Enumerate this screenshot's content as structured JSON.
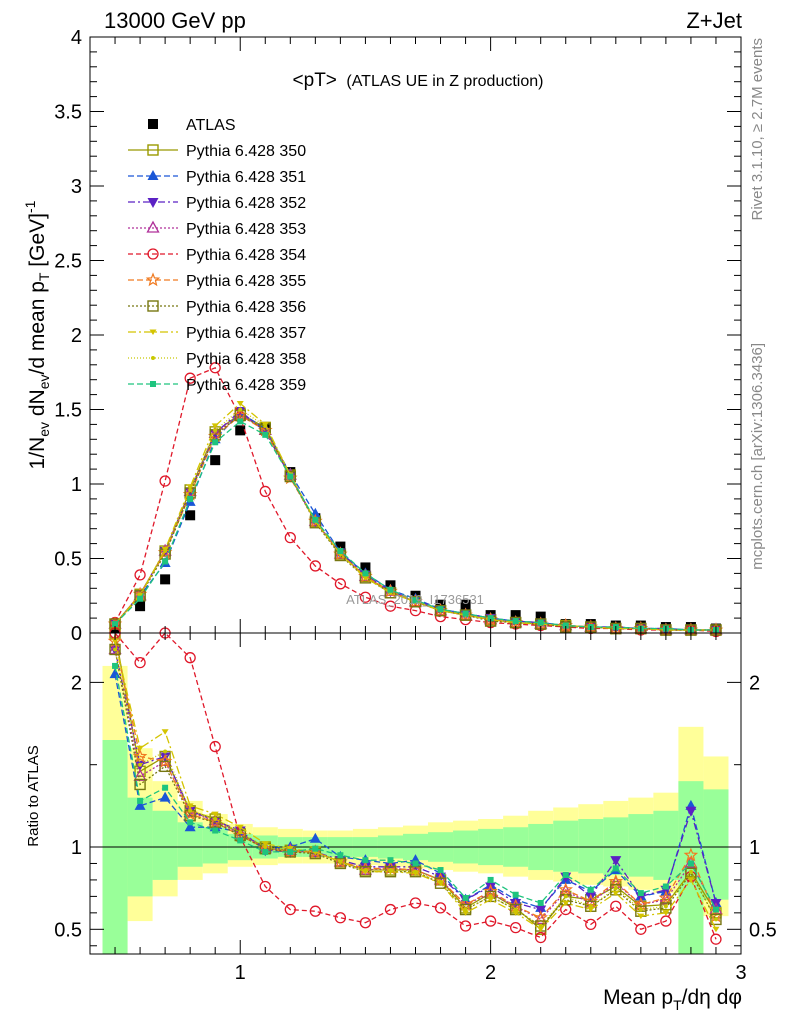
{
  "header": {
    "left": "13000 GeV pp",
    "right": "Z+Jet"
  },
  "main_title": {
    "main": "<pT>",
    "sub": "(ATLAS UE in Z production)"
  },
  "side_labels": {
    "rivet": "Rivet 3.1.10, ≥ 2.7M events",
    "mcplots": "mcplots.cern.ch [arXiv:1306.3436]"
  },
  "watermark": "ATLAS_2019_I1736531",
  "colors": {
    "ATLAS": "#000000",
    "350": "#999900",
    "351": "#1a56d6",
    "352": "#5b21c4",
    "353": "#b0309a",
    "354": "#e0182a",
    "355": "#f07a20",
    "356": "#777711",
    "357": "#d4c400",
    "358": "#c8c800",
    "359": "#1ec47e",
    "band_inner": "#99ff99",
    "band_outer": "#ffff99"
  },
  "chart_data": [
    {
      "type": "line",
      "panel": "main",
      "ylabel": "1/N_ev dN_ev/d mean p_T [GeV]^-1",
      "ylim": [
        0,
        4
      ],
      "xlim": [
        0.4,
        3.0
      ],
      "yticks": [
        "0",
        "0.5",
        "1",
        "1.5",
        "2",
        "2.5",
        "3",
        "3.5",
        "4"
      ],
      "x": [
        0.5,
        0.6,
        0.7,
        0.8,
        0.9,
        1.0,
        1.1,
        1.2,
        1.3,
        1.4,
        1.5,
        1.6,
        1.7,
        1.8,
        1.9,
        2.0,
        2.1,
        2.2,
        2.3,
        2.4,
        2.5,
        2.6,
        2.7,
        2.8,
        2.9
      ],
      "series": [
        {
          "name": "ATLAS",
          "key": "ATLAS",
          "marker": "square-filled",
          "values": [
            0.03,
            0.18,
            0.36,
            0.79,
            1.16,
            1.36,
            1.38,
            1.08,
            0.77,
            0.58,
            0.44,
            0.32,
            0.25,
            0.19,
            0.19,
            0.12,
            0.12,
            0.11,
            0.06,
            0.06,
            0.05,
            0.05,
            0.04,
            0.04,
            0.03
          ]
        },
        {
          "name": "Pythia 6.428 350",
          "key": "350",
          "marker": "square-open",
          "dash": "",
          "values": [
            0.06,
            0.26,
            0.55,
            0.96,
            1.35,
            1.47,
            1.38,
            1.06,
            0.75,
            0.53,
            0.38,
            0.27,
            0.21,
            0.15,
            0.12,
            0.09,
            0.07,
            0.06,
            0.05,
            0.04,
            0.03,
            0.03,
            0.02,
            0.02,
            0.02
          ]
        },
        {
          "name": "Pythia 6.428 351",
          "key": "351",
          "marker": "triangle-up-filled",
          "dash": "6,3",
          "values": [
            0.06,
            0.25,
            0.47,
            0.88,
            1.3,
            1.48,
            1.37,
            1.07,
            0.8,
            0.54,
            0.4,
            0.29,
            0.23,
            0.16,
            0.13,
            0.1,
            0.08,
            0.07,
            0.05,
            0.04,
            0.04,
            0.03,
            0.03,
            0.02,
            0.02
          ]
        },
        {
          "name": "Pythia 6.428 352",
          "key": "352",
          "marker": "triangle-down-filled",
          "dash": "7,3,2,3",
          "values": [
            0.06,
            0.26,
            0.55,
            0.95,
            1.34,
            1.49,
            1.35,
            1.05,
            0.75,
            0.54,
            0.39,
            0.28,
            0.22,
            0.16,
            0.13,
            0.1,
            0.08,
            0.07,
            0.05,
            0.04,
            0.04,
            0.03,
            0.03,
            0.02,
            0.02
          ]
        },
        {
          "name": "Pythia 6.428 353",
          "key": "353",
          "marker": "triangle-up-open",
          "dash": "2,2",
          "values": [
            0.06,
            0.25,
            0.55,
            0.95,
            1.34,
            1.47,
            1.36,
            1.06,
            0.75,
            0.53,
            0.38,
            0.28,
            0.21,
            0.15,
            0.12,
            0.09,
            0.07,
            0.06,
            0.05,
            0.04,
            0.03,
            0.03,
            0.02,
            0.02,
            0.02
          ]
        },
        {
          "name": "Pythia 6.428 354",
          "key": "354",
          "marker": "circle-open",
          "dash": "5,3",
          "values": [
            0.07,
            0.39,
            1.02,
            1.71,
            1.78,
            1.45,
            0.95,
            0.64,
            0.45,
            0.33,
            0.24,
            0.18,
            0.15,
            0.11,
            0.09,
            0.07,
            0.06,
            0.05,
            0.04,
            0.03,
            0.03,
            0.02,
            0.02,
            0.02,
            0.01
          ]
        },
        {
          "name": "Pythia 6.428 355",
          "key": "355",
          "marker": "star-open",
          "dash": "6,3",
          "values": [
            0.06,
            0.26,
            0.54,
            0.93,
            1.32,
            1.46,
            1.36,
            1.04,
            0.75,
            0.53,
            0.38,
            0.28,
            0.21,
            0.15,
            0.12,
            0.09,
            0.07,
            0.06,
            0.05,
            0.04,
            0.03,
            0.03,
            0.02,
            0.02,
            0.02
          ]
        },
        {
          "name": "Pythia 6.428 356",
          "key": "356",
          "marker": "square-open",
          "dash": "2,2",
          "values": [
            0.06,
            0.25,
            0.53,
            0.94,
            1.33,
            1.46,
            1.37,
            1.05,
            0.74,
            0.52,
            0.37,
            0.27,
            0.21,
            0.15,
            0.12,
            0.08,
            0.07,
            0.06,
            0.04,
            0.04,
            0.03,
            0.03,
            0.02,
            0.02,
            0.02
          ]
        },
        {
          "name": "Pythia 6.428 357",
          "key": "357",
          "marker": "tri-small",
          "dash": "8,3,2,3",
          "values": [
            0.06,
            0.25,
            0.56,
            0.98,
            1.39,
            1.54,
            1.4,
            1.06,
            0.75,
            0.53,
            0.37,
            0.27,
            0.21,
            0.15,
            0.12,
            0.09,
            0.07,
            0.06,
            0.05,
            0.04,
            0.03,
            0.03,
            0.02,
            0.02,
            0.02
          ]
        },
        {
          "name": "Pythia 6.428 358",
          "key": "358",
          "marker": "dot",
          "dash": "1,2",
          "values": [
            0.06,
            0.26,
            0.55,
            0.96,
            1.36,
            1.5,
            1.39,
            1.06,
            0.75,
            0.53,
            0.38,
            0.27,
            0.21,
            0.15,
            0.12,
            0.09,
            0.07,
            0.06,
            0.05,
            0.04,
            0.03,
            0.03,
            0.02,
            0.02,
            0.02
          ]
        },
        {
          "name": "Pythia 6.428 359",
          "key": "359",
          "marker": "square-small",
          "dash": "6,3",
          "values": [
            0.06,
            0.23,
            0.48,
            0.9,
            1.28,
            1.42,
            1.33,
            1.05,
            0.76,
            0.55,
            0.4,
            0.29,
            0.22,
            0.16,
            0.13,
            0.1,
            0.08,
            0.07,
            0.05,
            0.04,
            0.04,
            0.03,
            0.03,
            0.02,
            0.02
          ]
        }
      ]
    },
    {
      "type": "line",
      "panel": "ratio",
      "xlabel": "Mean p_T/dη dφ",
      "ylabel": "Ratio to ATLAS",
      "ylim": [
        0.35,
        2.3
      ],
      "xlim": [
        0.4,
        3.0
      ],
      "xticks": [
        "1",
        "2",
        "3"
      ],
      "yticks": [
        "0.5",
        "1",
        "2"
      ],
      "x": [
        0.5,
        0.6,
        0.7,
        0.8,
        0.9,
        1.0,
        1.1,
        1.2,
        1.3,
        1.4,
        1.5,
        1.6,
        1.7,
        1.8,
        1.9,
        2.0,
        2.1,
        2.2,
        2.3,
        2.4,
        2.5,
        2.6,
        2.7,
        2.8,
        2.9
      ],
      "band_inner": [
        [
          0.35,
          1.65
        ],
        [
          0.7,
          1.3
        ],
        [
          0.8,
          1.22
        ],
        [
          0.88,
          1.15
        ],
        [
          0.9,
          1.12
        ],
        [
          0.92,
          1.08
        ],
        [
          0.93,
          1.07
        ],
        [
          0.94,
          1.06
        ],
        [
          0.94,
          1.06
        ],
        [
          0.94,
          1.06
        ],
        [
          0.94,
          1.06
        ],
        [
          0.93,
          1.07
        ],
        [
          0.92,
          1.08
        ],
        [
          0.91,
          1.09
        ],
        [
          0.9,
          1.1
        ],
        [
          0.89,
          1.11
        ],
        [
          0.88,
          1.12
        ],
        [
          0.86,
          1.14
        ],
        [
          0.85,
          1.16
        ],
        [
          0.84,
          1.17
        ],
        [
          0.83,
          1.18
        ],
        [
          0.82,
          1.2
        ],
        [
          0.8,
          1.22
        ],
        [
          0.35,
          1.4
        ],
        [
          0.68,
          1.35
        ]
      ],
      "band_outer": [
        [
          0.35,
          2.1
        ],
        [
          0.55,
          1.6
        ],
        [
          0.7,
          1.4
        ],
        [
          0.8,
          1.28
        ],
        [
          0.84,
          1.2
        ],
        [
          0.88,
          1.14
        ],
        [
          0.89,
          1.12
        ],
        [
          0.9,
          1.11
        ],
        [
          0.9,
          1.1
        ],
        [
          0.9,
          1.1
        ],
        [
          0.89,
          1.11
        ],
        [
          0.88,
          1.12
        ],
        [
          0.87,
          1.13
        ],
        [
          0.86,
          1.15
        ],
        [
          0.85,
          1.16
        ],
        [
          0.84,
          1.17
        ],
        [
          0.82,
          1.19
        ],
        [
          0.8,
          1.22
        ],
        [
          0.79,
          1.24
        ],
        [
          0.77,
          1.26
        ],
        [
          0.76,
          1.28
        ],
        [
          0.74,
          1.3
        ],
        [
          0.72,
          1.33
        ],
        [
          0.35,
          1.73
        ],
        [
          0.58,
          1.55
        ]
      ],
      "series": [
        {
          "name": "Pythia 6.428 350",
          "key": "350",
          "marker": "square-open",
          "dash": "",
          "values": [
            2.3,
            1.46,
            1.55,
            1.22,
            1.17,
            1.08,
            1.0,
            0.98,
            0.97,
            0.91,
            0.86,
            0.86,
            0.86,
            0.8,
            0.63,
            0.72,
            0.63,
            0.5,
            0.7,
            0.68,
            0.76,
            0.64,
            0.65,
            0.85,
            0.6
          ]
        },
        {
          "name": "Pythia 6.428 351",
          "key": "351",
          "marker": "triangle-up-filled",
          "dash": "6,3",
          "values": [
            2.05,
            1.25,
            1.3,
            1.12,
            1.12,
            1.09,
            0.99,
            1.0,
            1.05,
            0.94,
            0.92,
            0.9,
            0.92,
            0.84,
            0.68,
            0.77,
            0.68,
            0.63,
            0.8,
            0.73,
            0.86,
            0.7,
            0.73,
            1.25,
            0.66
          ]
        },
        {
          "name": "Pythia 6.428 352",
          "key": "352",
          "marker": "triangle-down-filled",
          "dash": "7,3,2,3",
          "values": [
            2.2,
            1.5,
            1.55,
            1.22,
            1.16,
            1.1,
            0.98,
            0.97,
            0.97,
            0.92,
            0.88,
            0.88,
            0.88,
            0.82,
            0.68,
            0.76,
            0.66,
            0.62,
            0.82,
            0.7,
            0.92,
            0.7,
            0.74,
            1.22,
            0.66
          ]
        },
        {
          "name": "Pythia 6.428 353",
          "key": "353",
          "marker": "triangle-up-open",
          "dash": "2,2",
          "values": [
            2.2,
            1.43,
            1.52,
            1.21,
            1.16,
            1.08,
            0.99,
            0.98,
            0.97,
            0.91,
            0.86,
            0.87,
            0.86,
            0.8,
            0.65,
            0.72,
            0.64,
            0.56,
            0.73,
            0.66,
            0.78,
            0.65,
            0.68,
            0.9,
            0.62
          ]
        },
        {
          "name": "Pythia 6.428 354",
          "key": "354",
          "marker": "circle-open",
          "dash": "5,3",
          "values": [
            2.3,
            2.12,
            2.3,
            2.15,
            1.61,
            1.06,
            0.76,
            0.62,
            0.61,
            0.57,
            0.54,
            0.62,
            0.66,
            0.63,
            0.52,
            0.55,
            0.51,
            0.45,
            0.62,
            0.53,
            0.64,
            0.5,
            0.55,
            0.82,
            0.44
          ]
        },
        {
          "name": "Pythia 6.428 355",
          "key": "355",
          "marker": "star-open",
          "dash": "6,3",
          "values": [
            2.25,
            1.55,
            1.52,
            1.2,
            1.15,
            1.07,
            0.99,
            0.97,
            0.97,
            0.91,
            0.87,
            0.87,
            0.86,
            0.8,
            0.65,
            0.73,
            0.64,
            0.57,
            0.74,
            0.67,
            0.79,
            0.65,
            0.69,
            0.95,
            0.58
          ]
        },
        {
          "name": "Pythia 6.428 356",
          "key": "356",
          "marker": "square-open",
          "dash": "2,2",
          "values": [
            2.2,
            1.38,
            1.49,
            1.19,
            1.15,
            1.07,
            0.99,
            0.97,
            0.96,
            0.9,
            0.85,
            0.85,
            0.85,
            0.78,
            0.62,
            0.7,
            0.62,
            0.52,
            0.68,
            0.64,
            0.74,
            0.61,
            0.63,
            0.84,
            0.56
          ]
        },
        {
          "name": "Pythia 6.428 357",
          "key": "357",
          "marker": "tri-small",
          "dash": "8,3,2,3",
          "values": [
            2.25,
            1.6,
            1.7,
            1.25,
            1.2,
            1.12,
            1.02,
            0.99,
            0.97,
            0.91,
            0.85,
            0.85,
            0.84,
            0.78,
            0.6,
            0.68,
            0.6,
            0.5,
            0.66,
            0.62,
            0.72,
            0.58,
            0.6,
            0.8,
            0.5
          ]
        },
        {
          "name": "Pythia 6.428 358",
          "key": "358",
          "marker": "dot",
          "dash": "1,2",
          "values": [
            2.2,
            1.5,
            1.58,
            1.22,
            1.17,
            1.09,
            1.0,
            0.98,
            0.97,
            0.91,
            0.86,
            0.86,
            0.85,
            0.79,
            0.62,
            0.7,
            0.62,
            0.52,
            0.7,
            0.64,
            0.75,
            0.62,
            0.64,
            0.85,
            0.56
          ]
        },
        {
          "name": "Pythia 6.428 359",
          "key": "359",
          "marker": "square-small",
          "dash": "6,3",
          "values": [
            2.1,
            1.28,
            1.36,
            1.15,
            1.1,
            1.04,
            0.97,
            0.97,
            0.99,
            0.95,
            0.92,
            0.92,
            0.9,
            0.86,
            0.69,
            0.8,
            0.71,
            0.66,
            0.83,
            0.74,
            0.87,
            0.72,
            0.76,
            0.9,
            0.62
          ]
        }
      ]
    }
  ]
}
